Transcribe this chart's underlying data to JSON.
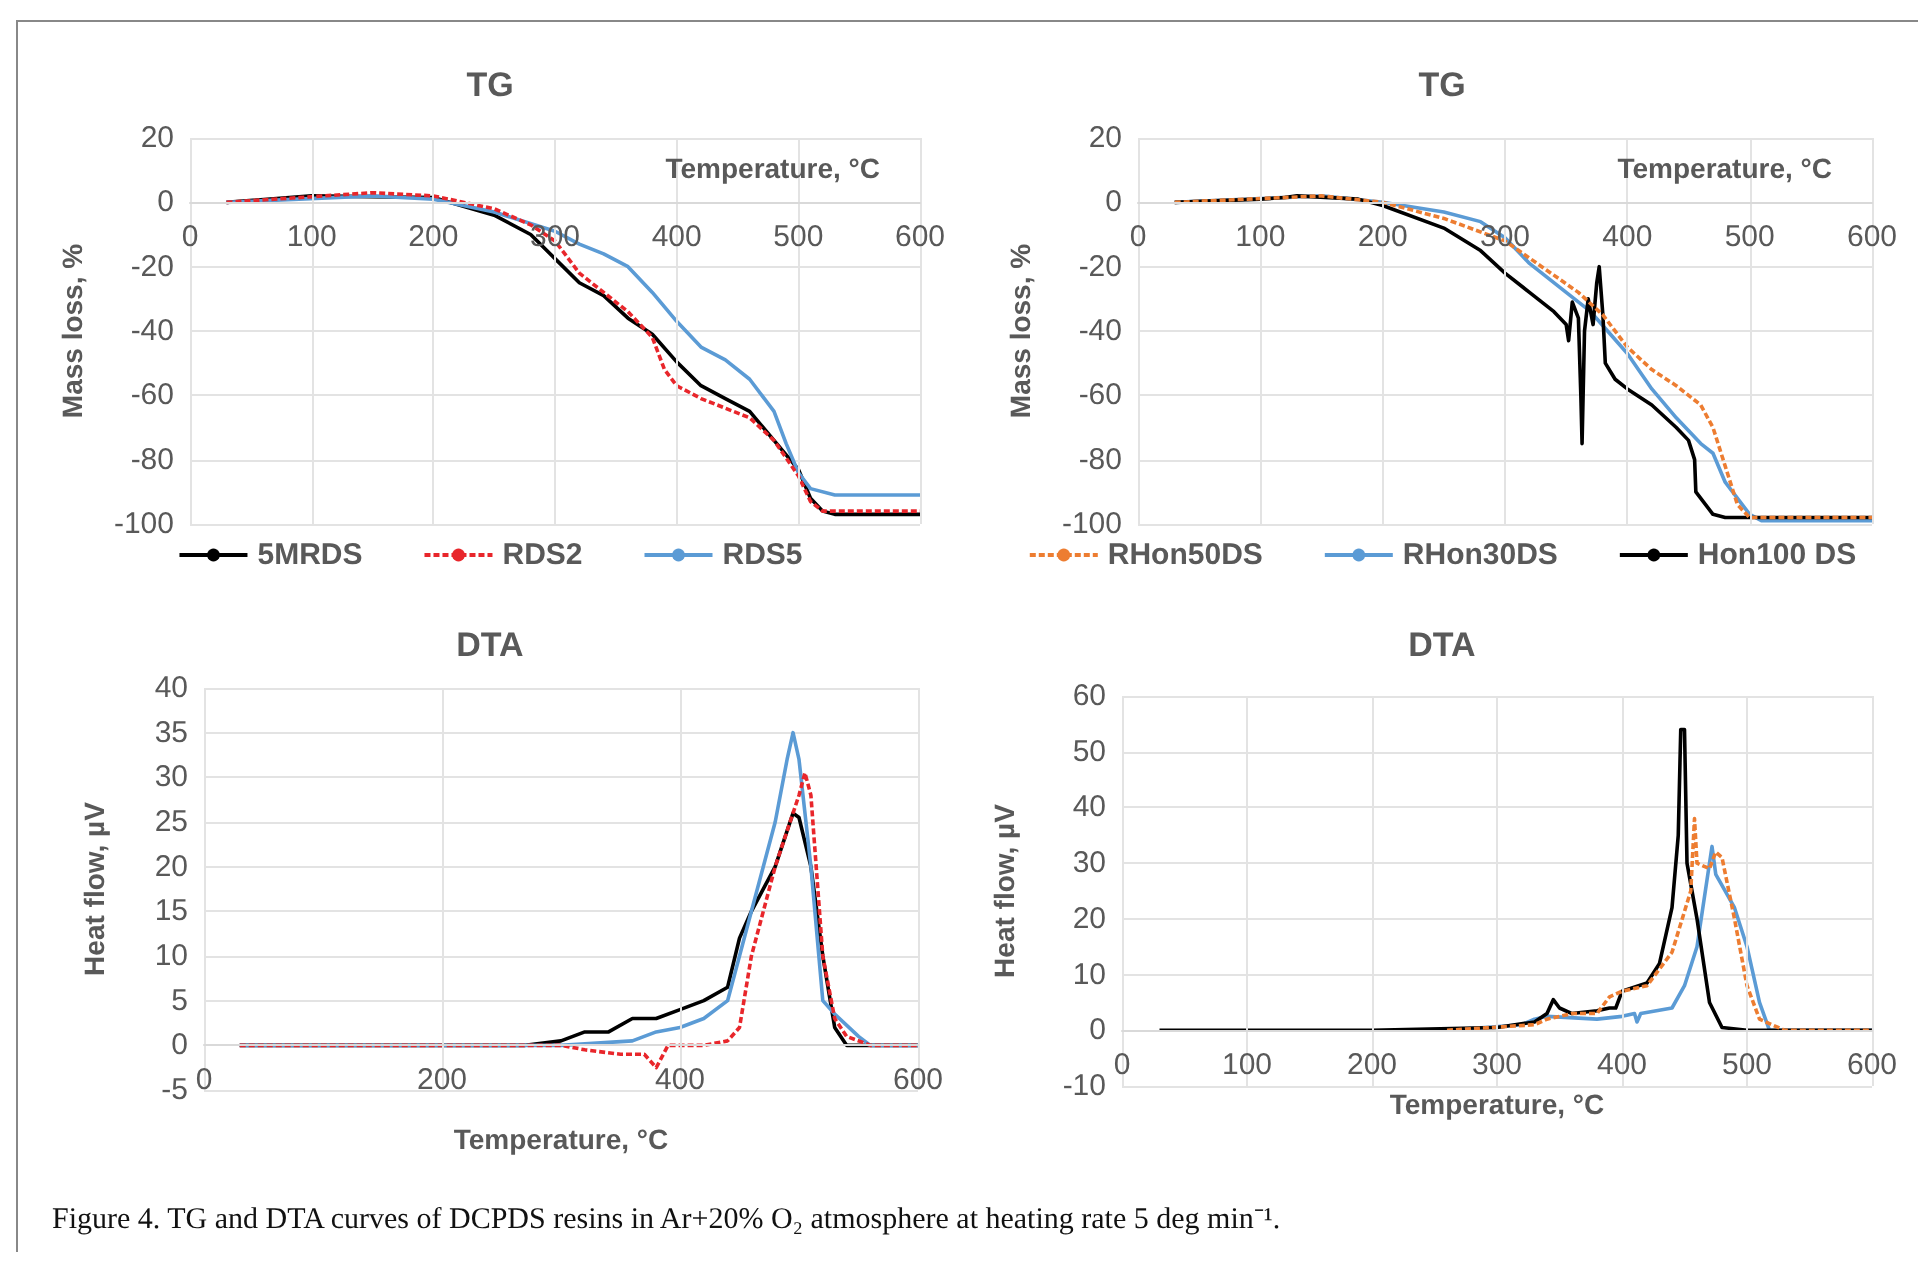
{
  "chart_data": [
    {
      "type": "line",
      "title": "TG",
      "xlabel": "Temperature, °C",
      "ylabel": "Mass loss, %",
      "xlim": [
        0,
        600
      ],
      "xticks": [
        0,
        100,
        200,
        300,
        400,
        500,
        600
      ],
      "ylim": [
        -100,
        20
      ],
      "yticks": [
        -100,
        -80,
        -60,
        -40,
        -20,
        0,
        20
      ],
      "grid": true,
      "legend": "bottom",
      "marker": "none",
      "series": [
        {
          "name": "5MRDS",
          "color": "#000000",
          "line_style": "solid",
          "x": [
            30,
            100,
            200,
            250,
            280,
            300,
            320,
            340,
            360,
            380,
            400,
            420,
            440,
            460,
            480,
            500,
            510,
            520,
            530,
            600
          ],
          "values": [
            0,
            2,
            1.5,
            -4,
            -10,
            -17.5,
            -25,
            -29,
            -36,
            -41,
            -49.6,
            -57,
            -61,
            -65,
            -74,
            -83,
            -92,
            -96,
            -97,
            -97
          ]
        },
        {
          "name": "RDS2",
          "color": "#e8262b",
          "line_style": "dashed",
          "x": [
            30,
            150,
            200,
            250,
            280,
            300,
            320,
            340,
            360,
            380,
            390,
            400,
            420,
            440,
            460,
            480,
            500,
            510,
            520,
            600
          ],
          "values": [
            0,
            3,
            2,
            -2,
            -7,
            -12,
            -22,
            -28,
            -34,
            -42,
            -52,
            -57,
            -61,
            -64,
            -67,
            -74,
            -85,
            -93,
            -96,
            -96
          ]
        },
        {
          "name": "RDS5",
          "color": "#5b9bd5",
          "line_style": "solid",
          "x": [
            30,
            150,
            200,
            250,
            300,
            320,
            340,
            360,
            380,
            400,
            420,
            440,
            460,
            480,
            490,
            500,
            510,
            530,
            600
          ],
          "values": [
            0,
            2,
            1,
            -3,
            -9,
            -13,
            -16,
            -20,
            -28,
            -37,
            -45,
            -49,
            -55,
            -65,
            -75,
            -84,
            -89,
            -91,
            -91
          ]
        }
      ]
    },
    {
      "type": "line",
      "title": "TG",
      "xlabel": "Temperature, °C",
      "ylabel": "Mass loss, %",
      "xlim": [
        0,
        600
      ],
      "xticks": [
        0,
        100,
        200,
        300,
        400,
        500,
        600
      ],
      "ylim": [
        -100,
        20
      ],
      "yticks": [
        -100,
        -80,
        -60,
        -40,
        -20,
        0,
        20
      ],
      "grid": true,
      "legend": "bottom",
      "marker": "none",
      "series": [
        {
          "name": "RHon50DS",
          "color": "#ed7d31",
          "line_style": "dashed",
          "x": [
            30,
            150,
            200,
            250,
            300,
            330,
            360,
            380,
            400,
            420,
            440,
            460,
            470,
            480,
            490,
            500,
            600
          ],
          "values": [
            0,
            2,
            0,
            -5,
            -12,
            -20,
            -28,
            -35,
            -45,
            -52,
            -57,
            -63,
            -70,
            -82,
            -94,
            -98,
            -98
          ]
        },
        {
          "name": "RHon30DS",
          "color": "#5b9bd5",
          "line_style": "solid",
          "x": [
            30,
            150,
            200,
            250,
            280,
            300,
            320,
            350,
            370,
            400,
            420,
            440,
            460,
            470,
            480,
            500,
            510,
            600
          ],
          "values": [
            0,
            2,
            0,
            -3,
            -6,
            -11,
            -19,
            -28,
            -34,
            -47,
            -58,
            -67,
            -75,
            -78,
            -87,
            -97,
            -99,
            -99
          ]
        },
        {
          "name": "Hon100 DS",
          "color": "#000000",
          "line_style": "solid",
          "x": [
            30,
            100,
            120,
            130,
            180,
            200,
            250,
            280,
            300,
            320,
            340,
            350,
            352,
            355,
            360,
            362,
            363,
            365,
            368,
            372,
            375,
            377,
            380,
            382,
            390,
            400,
            420,
            440,
            450,
            455,
            456,
            470,
            480,
            600
          ],
          "values": [
            0,
            1,
            1.5,
            2,
            1,
            -1,
            -8,
            -15,
            -22,
            -28,
            -34,
            -38,
            -43,
            -31,
            -36,
            -60,
            -75,
            -40,
            -30,
            -38,
            -25,
            -20,
            -35,
            -50,
            -55,
            -58,
            -63,
            -70,
            -74,
            -80,
            -90,
            -97,
            -98,
            -98
          ]
        }
      ]
    },
    {
      "type": "line",
      "title": "DTA",
      "xlabel": "Temperature, °C",
      "ylabel": "Heat flow, µV",
      "xlim": [
        0,
        600
      ],
      "xticks": [
        0,
        200,
        400,
        600
      ],
      "ylim": [
        -5,
        40
      ],
      "yticks": [
        -5,
        0,
        5,
        10,
        15,
        20,
        25,
        30,
        35,
        40
      ],
      "grid": true,
      "marker": "none",
      "series": [
        {
          "color": "#000000",
          "line_style": "solid",
          "x": [
            30,
            270,
            300,
            320,
            340,
            360,
            380,
            400,
            420,
            440,
            450,
            460,
            480,
            490,
            495,
            500,
            510,
            520,
            530,
            540,
            600
          ],
          "values": [
            0,
            0,
            0.5,
            1.5,
            1.5,
            3,
            3,
            4,
            5,
            6.5,
            12,
            15,
            20,
            24,
            26,
            25.5,
            20,
            10,
            2,
            0,
            0
          ]
        },
        {
          "color": "#e8262b",
          "line_style": "dashed",
          "x": [
            30,
            300,
            320,
            350,
            370,
            380,
            390,
            420,
            440,
            450,
            460,
            480,
            500,
            505,
            510,
            520,
            530,
            540,
            560,
            600
          ],
          "values": [
            0,
            0,
            -0.5,
            -1,
            -1,
            -2.5,
            0,
            0,
            0.5,
            2,
            10,
            20,
            28,
            30.5,
            28,
            10,
            3,
            1,
            0,
            0
          ]
        },
        {
          "color": "#5b9bd5",
          "line_style": "solid",
          "x": [
            30,
            300,
            360,
            380,
            400,
            420,
            440,
            460,
            480,
            490,
            495,
            500,
            510,
            520,
            530,
            550,
            560,
            600
          ],
          "values": [
            0,
            0,
            0.5,
            1.5,
            2,
            3,
            5,
            15,
            25,
            32,
            35,
            32,
            20,
            5,
            3.5,
            1,
            0,
            0
          ]
        }
      ]
    },
    {
      "type": "line",
      "title": "DTA",
      "xlabel": "Temperature, °C",
      "ylabel": "Heat flow, µV",
      "xlim": [
        0,
        600
      ],
      "xticks": [
        0,
        100,
        200,
        300,
        400,
        500,
        600
      ],
      "ylim": [
        -10,
        60
      ],
      "yticks": [
        -10,
        0,
        10,
        20,
        30,
        40,
        50,
        60
      ],
      "grid": true,
      "marker": "none",
      "annotations": [
        "Figure 4. TG and DTA curves of DCPDS resins in Ar+20% O₂ atmosphere at heating rate 5 deg min⁻¹."
      ],
      "series": [
        {
          "color": "#ed7d31",
          "line_style": "dashed",
          "x": [
            260,
            330,
            340,
            360,
            380,
            390,
            400,
            420,
            440,
            455,
            458,
            460,
            470,
            475,
            480,
            490,
            500,
            510,
            530,
            600
          ],
          "values": [
            0,
            1,
            2,
            3,
            3,
            6,
            7,
            8,
            14,
            25,
            38,
            30,
            29,
            32,
            31,
            20,
            8,
            2,
            0,
            0
          ]
        },
        {
          "color": "#5b9bd5",
          "line_style": "solid",
          "x": [
            260,
            320,
            330,
            340,
            380,
            400,
            410,
            412,
            415,
            440,
            450,
            460,
            472,
            475,
            480,
            490,
            500,
            510,
            518,
            600
          ],
          "values": [
            0,
            1,
            2,
            2.5,
            2,
            2.5,
            3,
            1.5,
            3,
            4,
            8,
            15,
            33,
            28,
            26,
            22,
            15,
            5,
            0,
            0
          ]
        },
        {
          "color": "#000000",
          "line_style": "solid",
          "x": [
            30,
            200,
            300,
            330,
            340,
            345,
            350,
            360,
            380,
            390,
            395,
            400,
            420,
            430,
            440,
            445,
            447,
            450,
            452,
            460,
            470,
            480,
            500,
            600
          ],
          "values": [
            0,
            0,
            0.5,
            1.5,
            3,
            5.5,
            4,
            3,
            3.5,
            4,
            4,
            7,
            8.5,
            12,
            22,
            35,
            54,
            54,
            30,
            20,
            5,
            0.5,
            0,
            0
          ]
        }
      ]
    }
  ]
}
